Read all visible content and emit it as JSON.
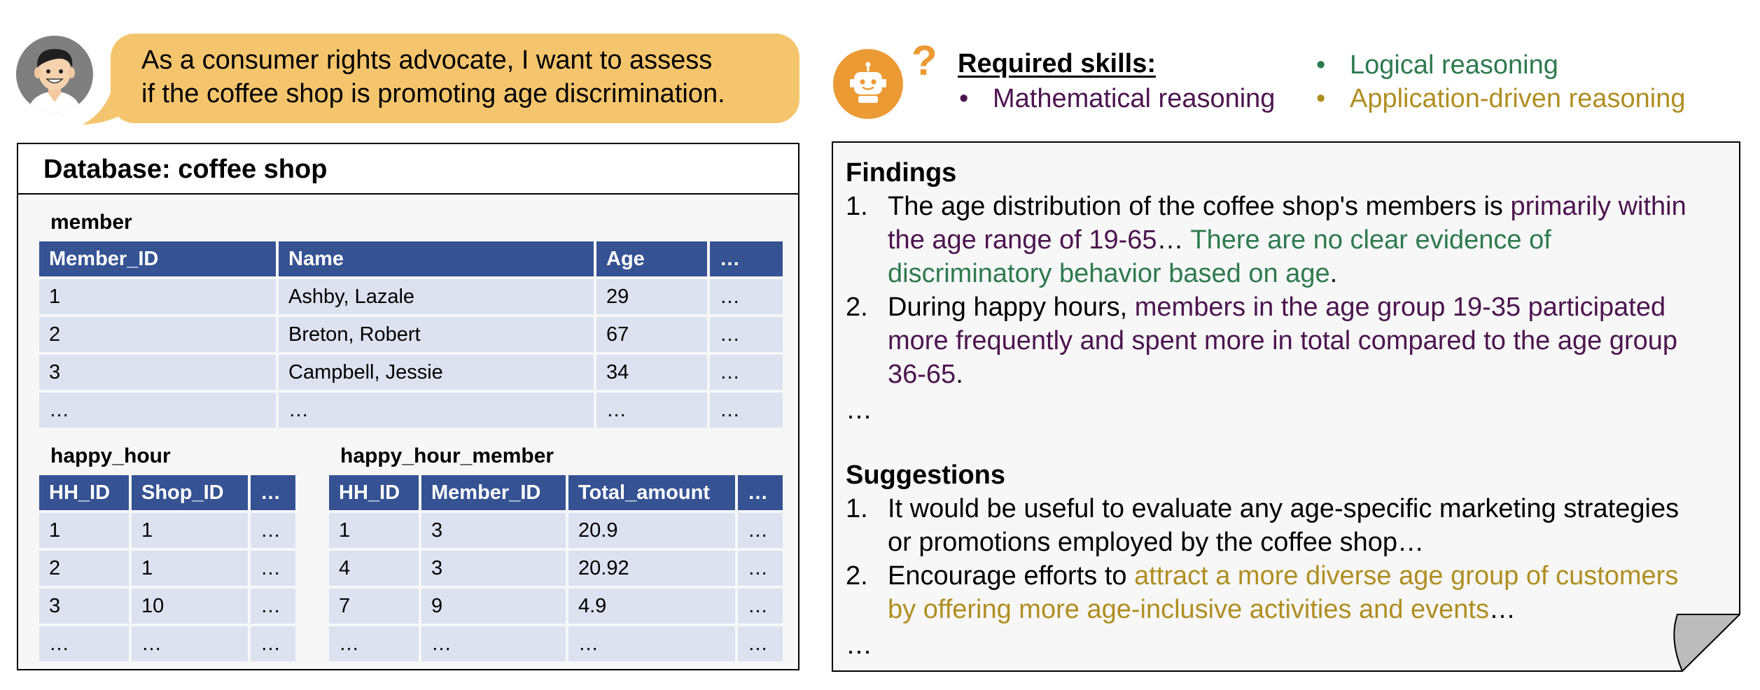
{
  "user": {
    "message_line1": "As a consumer rights advocate, I want to assess",
    "message_line2": "if the coffee shop is promoting age discrimination."
  },
  "database": {
    "title": "Database: coffee shop",
    "member": {
      "label": "member",
      "headers": [
        "Member_ID",
        "Name",
        "Age",
        "…"
      ],
      "rows": [
        [
          "1",
          "Ashby, Lazale",
          "29",
          "…"
        ],
        [
          "2",
          "Breton, Robert",
          "67",
          "…"
        ],
        [
          "3",
          "Campbell, Jessie",
          "34",
          "…"
        ],
        [
          "…",
          "…",
          "…",
          "…"
        ]
      ]
    },
    "happy_hour": {
      "label": "happy_hour",
      "headers": [
        "HH_ID",
        "Shop_ID",
        "…"
      ],
      "rows": [
        [
          "1",
          "1",
          "…"
        ],
        [
          "2",
          "1",
          "…"
        ],
        [
          "3",
          "10",
          "…"
        ],
        [
          "…",
          "…",
          "…"
        ]
      ]
    },
    "happy_hour_member": {
      "label": "happy_hour_member",
      "headers": [
        "HH_ID",
        "Member_ID",
        "Total_amount",
        "…"
      ],
      "rows": [
        [
          "1",
          "3",
          "20.9",
          "…"
        ],
        [
          "4",
          "3",
          "20.92",
          "…"
        ],
        [
          "7",
          "9",
          "4.9",
          "…"
        ],
        [
          "…",
          "…",
          "…",
          "…"
        ]
      ]
    }
  },
  "skills": {
    "qmark": "?",
    "title": "Required skills:",
    "bullet": "•",
    "mathematical": "Mathematical reasoning",
    "logical": "Logical reasoning",
    "application": "Application-driven reasoning"
  },
  "colors": {
    "purple": "#4d1450",
    "green": "#2e7a4e",
    "gold": "#b08e22",
    "bubble": "#f5c56d",
    "table_header": "#355293",
    "table_cell": "#dde2f1",
    "robot": "#ec9a34"
  },
  "findings": {
    "title": "Findings",
    "item1": {
      "num": "1.",
      "line1_black": "The age distribution of the coffee shop's members is ",
      "line1_purple": "primarily within",
      "line2_purple": "the age range of 19-65",
      "line2_black": "… ",
      "line2_green": "There are no clear evidence of",
      "line3_green": "discriminatory behavior based on age",
      "line3_black": "."
    },
    "item2": {
      "num": "2.",
      "line1_black": "During happy hours, ",
      "line1_purple": "members in the age group 19-35 participated",
      "line2_purple": "more frequently and spent more in total compared to the age group",
      "line3_purple": "36-65",
      "line3_black": "."
    },
    "ellipsis": "…"
  },
  "suggestions": {
    "title": "Suggestions",
    "item1": {
      "num": "1.",
      "line1": "It would be useful to evaluate any age-specific marketing strategies",
      "line2": "or promotions employed by the coffee shop…"
    },
    "item2": {
      "num": "2.",
      "line1_black": "Encourage efforts to ",
      "line1_gold": "attract a more diverse age group of customers",
      "line2_gold": "by offering more age-inclusive activities and events",
      "line2_black": "…"
    },
    "ellipsis": "…"
  }
}
